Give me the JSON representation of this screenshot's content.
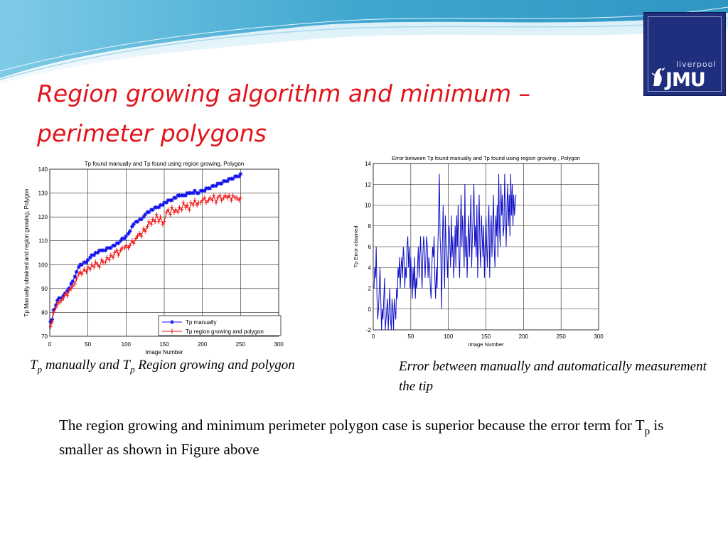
{
  "slide": {
    "title": "Region growing algorithm and minimum – perimeter polygons",
    "logo": {
      "small_text": "liverpool",
      "big_text": "JMU"
    },
    "caption_left": {
      "p1": "T",
      "sub1": "p",
      "p2": " manually and T",
      "sub2": "p",
      "p3": " Region growing and polygon"
    },
    "caption_right": "Error between manually and automatically measurement the tip",
    "body": {
      "part1": "The region growing and minimum perimeter polygon case is superior because the error term for T",
      "sub": "p",
      "part2": " is smaller  as shown in Figure  above"
    }
  },
  "colors": {
    "title": "#e2141a",
    "series_manual": "#1111ee",
    "series_region": "#ee1111",
    "series_error": "#1010c8",
    "logo_bg": "#1f2f7e",
    "wave": "#5bb5d6"
  },
  "chart_data": [
    {
      "type": "line",
      "title": "Tp found manually and Tp found using region growing,  Polygon",
      "xlabel": "Image Number",
      "ylabel": "Tp Manually obtained and region growing,  Polygon",
      "xlim": [
        0,
        300
      ],
      "ylim": [
        70,
        140
      ],
      "xticks": [
        0,
        50,
        100,
        150,
        200,
        250,
        300
      ],
      "yticks": [
        70,
        80,
        90,
        100,
        110,
        120,
        130,
        140
      ],
      "grid": true,
      "legend_position": "bottom-right",
      "series": [
        {
          "name": "Tp manually",
          "marker": "star",
          "x": [
            1,
            3,
            5,
            8,
            10,
            12,
            15,
            18,
            20,
            23,
            25,
            28,
            30,
            33,
            35,
            38,
            40,
            42,
            45,
            48,
            50,
            53,
            55,
            58,
            60,
            63,
            65,
            68,
            70,
            73,
            75,
            78,
            80,
            83,
            85,
            88,
            90,
            93,
            95,
            98,
            100,
            103,
            105,
            108,
            110,
            113,
            115,
            118,
            120,
            123,
            125,
            128,
            130,
            133,
            135,
            138,
            140,
            143,
            145,
            148,
            150,
            153,
            155,
            158,
            160,
            163,
            165,
            168,
            170,
            173,
            175,
            178,
            180,
            183,
            185,
            188,
            190,
            193,
            195,
            198,
            200,
            203,
            205,
            208,
            210,
            213,
            215,
            218,
            220,
            223,
            225,
            228,
            230,
            233,
            235,
            238,
            240,
            243,
            245,
            248,
            250
          ],
          "y": [
            76,
            77,
            81,
            83,
            85,
            86,
            86,
            87,
            88,
            89,
            90,
            92,
            93,
            95,
            97,
            99,
            100,
            100,
            101,
            101,
            102,
            103,
            104,
            104,
            105,
            105,
            106,
            106,
            106,
            106,
            107,
            107,
            107,
            108,
            108,
            109,
            109,
            110,
            111,
            111,
            112,
            113,
            114,
            116,
            117,
            118,
            118,
            119,
            119,
            120,
            121,
            122,
            122,
            123,
            123,
            124,
            124,
            124,
            125,
            125,
            126,
            126,
            127,
            127,
            127,
            128,
            128,
            129,
            129,
            129,
            129,
            129,
            130,
            130,
            130,
            130,
            131,
            130,
            130,
            131,
            131,
            131,
            132,
            132,
            132,
            133,
            133,
            133,
            134,
            134,
            134,
            135,
            135,
            135,
            136,
            136,
            136,
            137,
            137,
            137,
            138
          ]
        },
        {
          "name": "Tp region growing and polygon",
          "marker": "plus",
          "x": [
            1,
            3,
            5,
            8,
            10,
            12,
            15,
            18,
            20,
            23,
            25,
            28,
            30,
            33,
            35,
            38,
            40,
            42,
            45,
            48,
            50,
            53,
            55,
            58,
            60,
            63,
            65,
            68,
            70,
            73,
            75,
            78,
            80,
            83,
            85,
            88,
            90,
            93,
            95,
            98,
            100,
            103,
            105,
            108,
            110,
            113,
            115,
            118,
            120,
            123,
            125,
            128,
            130,
            133,
            135,
            138,
            140,
            143,
            145,
            148,
            150,
            153,
            155,
            158,
            160,
            163,
            165,
            168,
            170,
            173,
            175,
            178,
            180,
            183,
            185,
            188,
            190,
            193,
            195,
            198,
            200,
            203,
            205,
            208,
            210,
            213,
            215,
            218,
            220,
            223,
            225,
            228,
            230,
            233,
            235,
            238,
            240,
            243,
            245,
            248,
            250
          ],
          "y": [
            74,
            76,
            80,
            82,
            84,
            84,
            85,
            86,
            88,
            87,
            89,
            90,
            91,
            92,
            94,
            96,
            97,
            96,
            98,
            97,
            99,
            98,
            100,
            99,
            101,
            100,
            99,
            102,
            101,
            101,
            103,
            102,
            104,
            103,
            105,
            106,
            104,
            106,
            107,
            107,
            108,
            107,
            108,
            110,
            109,
            111,
            112,
            113,
            112,
            115,
            114,
            116,
            118,
            117,
            119,
            118,
            121,
            118,
            120,
            117,
            118,
            122,
            123,
            121,
            124,
            122,
            123,
            122,
            124,
            123,
            126,
            124,
            125,
            123,
            126,
            125,
            127,
            125,
            126,
            126,
            127,
            128,
            126,
            127,
            128,
            127,
            129,
            126,
            128,
            129,
            127,
            128,
            129,
            128,
            129,
            127,
            129,
            128,
            128,
            127,
            128
          ]
        }
      ]
    },
    {
      "type": "line",
      "title": "Error between Tp found manually and Tp found using   region growing , Polygon",
      "xlabel": "Image Number",
      "ylabel": "Tp Error obtained",
      "xlim": [
        0,
        300
      ],
      "ylim": [
        -2,
        14
      ],
      "xticks": [
        0,
        50,
        100,
        150,
        200,
        250,
        300
      ],
      "yticks": [
        -2,
        0,
        2,
        4,
        6,
        8,
        10,
        12,
        14
      ],
      "grid": true,
      "series": [
        {
          "name": "",
          "y": [
            2,
            4,
            3,
            6,
            1,
            -1,
            0,
            2,
            4,
            1,
            -2,
            0,
            -1,
            1,
            3,
            -2,
            -1,
            0,
            1,
            -2,
            0,
            2,
            -1,
            -2,
            1,
            0,
            -2,
            1,
            0,
            -1,
            2,
            1,
            4,
            3,
            5,
            2,
            4,
            5,
            3,
            6,
            5,
            2,
            4,
            3,
            6,
            7,
            4,
            6,
            2,
            5,
            3,
            1,
            4,
            2,
            5,
            1,
            3,
            2,
            4,
            6,
            3,
            5,
            7,
            4,
            2,
            5,
            7,
            6,
            3,
            5,
            7,
            6,
            3,
            5,
            4,
            2,
            1,
            4,
            6,
            5,
            7,
            3,
            1,
            4,
            2,
            6,
            9,
            13,
            7,
            5,
            0,
            6,
            10,
            6,
            2,
            9,
            6,
            5,
            3,
            7,
            8,
            6,
            4,
            9,
            5,
            7,
            3,
            5,
            8,
            4,
            9,
            6,
            10,
            5,
            3,
            8,
            11,
            6,
            9,
            7,
            4,
            12,
            5,
            7,
            3,
            6,
            9,
            5,
            8,
            11,
            4,
            7,
            9,
            12,
            6,
            8,
            5,
            10,
            3,
            7,
            11,
            6,
            4,
            9,
            7,
            5,
            8,
            3,
            6,
            9,
            6,
            4,
            8,
            10,
            3,
            7,
            9,
            5,
            8,
            11,
            6,
            4,
            9,
            7,
            10,
            5,
            13,
            8,
            6,
            12,
            9,
            11,
            7,
            8,
            13,
            9,
            6,
            10,
            12,
            8,
            11,
            7,
            13,
            9,
            12,
            8,
            11,
            9,
            10,
            11
          ]
        }
      ]
    }
  ]
}
